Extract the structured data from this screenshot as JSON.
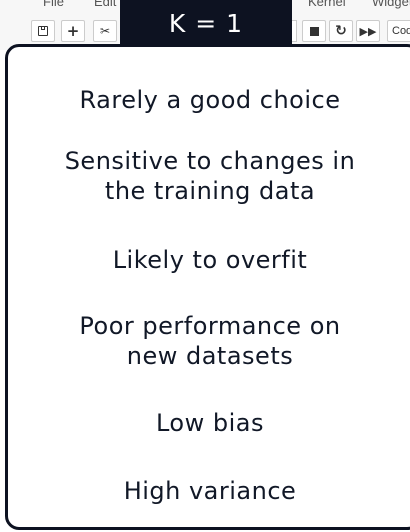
{
  "menu": {
    "file": "File",
    "edit": "Edit",
    "kernel": "Kernel",
    "widgets": "Widgets"
  },
  "toolbar": {
    "cell_type_select": "Code",
    "icons": [
      "save-icon",
      "plus-icon",
      "cut-icon",
      "stop-icon",
      "restart-icon",
      "fast-forward-icon"
    ],
    "plus_glyph": "+",
    "cut_glyph": "✂",
    "restart_glyph": "↻",
    "run_glyph": "▶▶"
  },
  "slide": {
    "title": "K = 1",
    "points": [
      {
        "lines": [
          "Rarely a good choice"
        ]
      },
      {
        "lines": [
          "Sensitive to changes in",
          "the training data"
        ]
      },
      {
        "lines": [
          "Likely to overfit"
        ]
      },
      {
        "lines": [
          "Poor performance on",
          "new datasets"
        ]
      },
      {
        "lines": [
          "Low bias"
        ]
      },
      {
        "lines": [
          "High variance"
        ]
      }
    ],
    "colors": {
      "title_background": "#0d1221",
      "card_border": "#0d1221",
      "text": "#111827"
    }
  }
}
